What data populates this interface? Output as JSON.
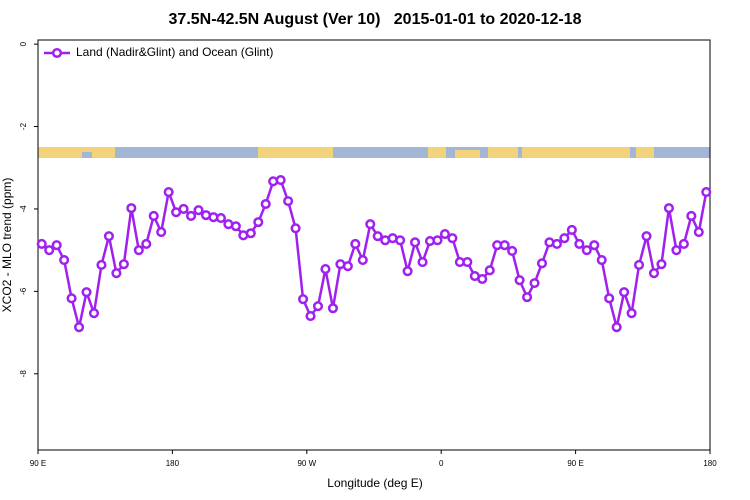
{
  "chart_data": {
    "type": "line",
    "title": "37.5N-42.5N August (Ver 10)   2015-01-01 to 2020-12-18",
    "x_label": "Longitude (deg E)",
    "y_label": "XCO2 - MLO trend (ppm)",
    "x": [
      92.5,
      97.5,
      102.5,
      107.5,
      112.5,
      117.5,
      122.5,
      127.5,
      132.5,
      137.5,
      142.5,
      147.5,
      152.5,
      157.5,
      162.5,
      167.5,
      172.5,
      177.5,
      182.5,
      187.5,
      192.5,
      197.5,
      202.5,
      207.5,
      212.5,
      217.5,
      222.5,
      227.5,
      232.5,
      237.5,
      242.5,
      247.5,
      252.5,
      257.5,
      262.5,
      267.5,
      272.5,
      277.5,
      282.5,
      287.5,
      292.5,
      297.5,
      302.5,
      307.5,
      312.5,
      317.5,
      322.5,
      327.5,
      332.5,
      337.5,
      342.5,
      347.5,
      352.5,
      357.5,
      362.5,
      367.5,
      372.5,
      377.5,
      382.5,
      387.5,
      392.5,
      397.5,
      402.5,
      407.5,
      412.5,
      417.5,
      422.5,
      427.5,
      432.5,
      437.5,
      442.5,
      447.5,
      452.5,
      457.5,
      462.5,
      467.5,
      472.5,
      477.5,
      482.5,
      487.5,
      492.5,
      497.5,
      502.5,
      507.5,
      512.5,
      517.5,
      522.5,
      527.5,
      532.5,
      537.5
    ],
    "series": [
      {
        "name": "Land (Nadir&Glint) and Ocean (Glint)",
        "color": "#a020f0",
        "values": [
          -4.85,
          -5.0,
          -4.88,
          -5.24,
          -6.17,
          -6.87,
          -6.02,
          -6.53,
          -5.36,
          -4.66,
          -5.56,
          -5.34,
          -3.98,
          -5.0,
          -4.85,
          -4.17,
          -4.56,
          -3.59,
          -4.08,
          -4.0,
          -4.17,
          -4.03,
          -4.15,
          -4.2,
          -4.22,
          -4.37,
          -4.42,
          -4.64,
          -4.59,
          -4.32,
          -3.88,
          -3.33,
          -3.3,
          -3.81,
          -4.47,
          -6.19,
          -6.6,
          -6.36,
          -5.46,
          -6.41,
          -5.34,
          -5.39,
          -4.85,
          -5.24,
          -4.37,
          -4.66,
          -4.76,
          -4.71,
          -4.76,
          -5.51,
          -4.81,
          -5.29,
          -4.78,
          -4.76,
          -4.61,
          -4.71,
          -5.29,
          -5.29,
          -5.63,
          -5.7,
          -5.49,
          -4.88,
          -4.88,
          -5.02,
          -5.73,
          -6.14,
          -5.8,
          -5.32,
          -4.81,
          -4.85,
          -4.71,
          -4.51,
          -4.85,
          -5.0,
          -4.88,
          -5.24,
          -6.17,
          -6.87,
          -6.02,
          -6.53,
          -5.36,
          -4.66,
          -5.56,
          -5.34,
          -3.98,
          -5.0,
          -4.85,
          -4.17,
          -4.56,
          -3.59
        ]
      }
    ],
    "xlim": [
      90,
      540
    ],
    "xticks": [
      {
        "value": 90,
        "label": "90 E"
      },
      180,
      {
        "value": 270,
        "label": "90 W"
      },
      {
        "value": 360,
        "label": "0"
      },
      {
        "value": 450,
        "label": "90 E"
      },
      {
        "value": 540,
        "label": "180"
      }
    ],
    "ylim": [
      -9.85,
      0.1
    ],
    "yticks": [
      0,
      -2,
      -4,
      -6,
      -8
    ],
    "legend": "top-left"
  }
}
